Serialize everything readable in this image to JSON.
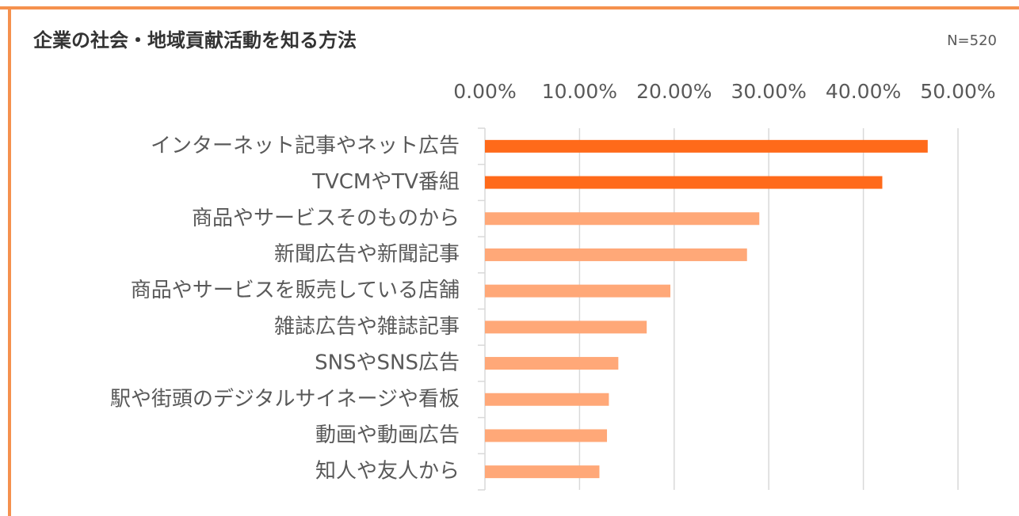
{
  "chart_data": {
    "type": "barh",
    "title": "企業の社会・地域貢献活動を知る方法",
    "subtitle": "N=520",
    "categories": [
      "インターネット記事やネット広告",
      "TVCMやTV番組",
      "商品やサービスそのものから",
      "新聞広告や新聞記事",
      "商品やサービスを販売している店舗",
      "雑誌広告や雑誌記事",
      "SNSやSNS広告",
      "駅や街頭のデジタルサイネージや看板",
      "動画や動画広告",
      "知人や友人から"
    ],
    "values": [
      46.8,
      42.0,
      29.0,
      27.7,
      19.6,
      17.1,
      14.1,
      13.1,
      12.9,
      12.1
    ],
    "colors": [
      "#ff6a1a",
      "#ff6a1a",
      "#ffa878",
      "#ffa878",
      "#ffa878",
      "#ffa878",
      "#ffa878",
      "#ffa878",
      "#ffa878",
      "#ffa878"
    ],
    "xlim": [
      0,
      50
    ],
    "xticks": [
      {
        "value": 0,
        "label": "0.00%"
      },
      {
        "value": 10,
        "label": "10.00%"
      },
      {
        "value": 20,
        "label": "20.00%"
      },
      {
        "value": 30,
        "label": "30.00%"
      },
      {
        "value": 40,
        "label": "40.00%"
      },
      {
        "value": 50,
        "label": "50.00%"
      }
    ],
    "grid": true
  }
}
